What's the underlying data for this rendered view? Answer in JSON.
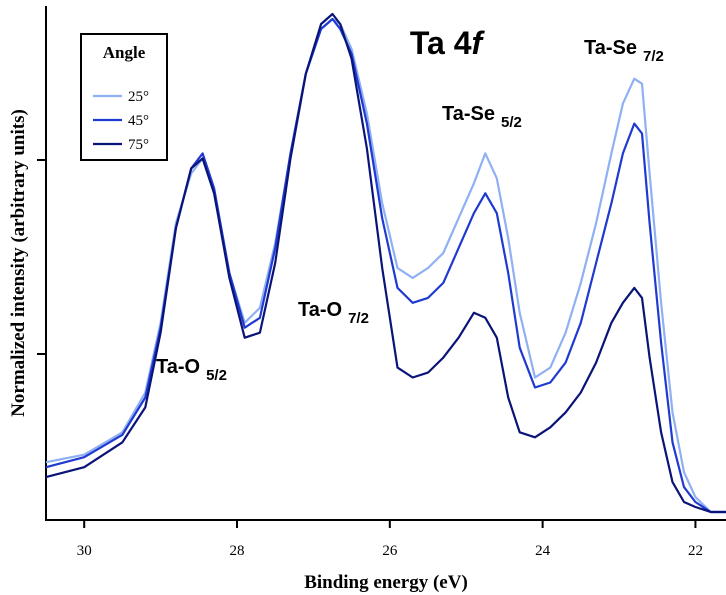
{
  "chart_data": {
    "type": "line",
    "title": "Ta 4",
    "title_italic": "f",
    "xlabel": "Binding energy (eV)",
    "ylabel": "Normalized intensity (arbitrary units)",
    "xlim": [
      30.5,
      21.6
    ],
    "ylim": [
      0,
      1.0
    ],
    "x_reversed": true,
    "x_ticks": [
      30,
      28,
      26,
      24,
      22
    ],
    "y_ticks_labeled": false,
    "legend": {
      "title": "Angle",
      "position": "top-left",
      "entries": [
        "25°",
        "45°",
        "75°"
      ]
    },
    "annotations": [
      {
        "main": "Ta-O",
        "sub": "5/2"
      },
      {
        "main": "Ta-O",
        "sub": "7/2"
      },
      {
        "main": "Ta-Se",
        "sub": "5/2"
      },
      {
        "main": "Ta-Se",
        "sub": "7/2"
      }
    ],
    "series": [
      {
        "name": "25°",
        "color": "#8fb0f2",
        "x": [
          30.5,
          30.0,
          29.5,
          29.2,
          29.0,
          28.8,
          28.6,
          28.45,
          28.3,
          28.1,
          27.9,
          27.7,
          27.5,
          27.3,
          27.1,
          26.9,
          26.75,
          26.65,
          26.5,
          26.3,
          26.1,
          25.9,
          25.7,
          25.5,
          25.3,
          25.1,
          24.9,
          24.75,
          24.6,
          24.45,
          24.3,
          24.1,
          23.9,
          23.7,
          23.5,
          23.3,
          23.1,
          22.95,
          22.8,
          22.7,
          22.6,
          22.45,
          22.3,
          22.15,
          22.0,
          21.8,
          21.6
        ],
        "y": [
          0.1,
          0.115,
          0.16,
          0.24,
          0.38,
          0.58,
          0.68,
          0.71,
          0.64,
          0.48,
          0.38,
          0.41,
          0.54,
          0.72,
          0.88,
          0.97,
          0.99,
          0.98,
          0.93,
          0.8,
          0.62,
          0.49,
          0.47,
          0.49,
          0.52,
          0.59,
          0.66,
          0.72,
          0.67,
          0.55,
          0.4,
          0.27,
          0.29,
          0.36,
          0.46,
          0.58,
          0.72,
          0.82,
          0.87,
          0.86,
          0.68,
          0.42,
          0.2,
          0.08,
          0.03,
          0.0,
          0.0
        ]
      },
      {
        "name": "45°",
        "color": "#1f3ad0",
        "x": [
          30.5,
          30.0,
          29.5,
          29.2,
          29.0,
          28.8,
          28.6,
          28.45,
          28.3,
          28.1,
          27.9,
          27.7,
          27.5,
          27.3,
          27.1,
          26.9,
          26.75,
          26.65,
          26.5,
          26.3,
          26.1,
          25.9,
          25.7,
          25.5,
          25.3,
          25.1,
          24.9,
          24.75,
          24.6,
          24.45,
          24.3,
          24.1,
          23.9,
          23.7,
          23.5,
          23.3,
          23.1,
          22.95,
          22.8,
          22.7,
          22.6,
          22.45,
          22.3,
          22.15,
          22.0,
          21.8,
          21.6
        ],
        "y": [
          0.09,
          0.11,
          0.155,
          0.23,
          0.37,
          0.57,
          0.69,
          0.72,
          0.65,
          0.48,
          0.37,
          0.39,
          0.53,
          0.72,
          0.88,
          0.97,
          0.99,
          0.97,
          0.92,
          0.78,
          0.59,
          0.45,
          0.42,
          0.43,
          0.46,
          0.53,
          0.6,
          0.64,
          0.6,
          0.48,
          0.33,
          0.25,
          0.26,
          0.3,
          0.38,
          0.5,
          0.62,
          0.72,
          0.78,
          0.76,
          0.58,
          0.34,
          0.14,
          0.05,
          0.02,
          0.0,
          0.0
        ]
      },
      {
        "name": "75°",
        "color": "#0a1478",
        "x": [
          30.5,
          30.0,
          29.5,
          29.2,
          29.0,
          28.8,
          28.6,
          28.45,
          28.3,
          28.1,
          27.9,
          27.7,
          27.5,
          27.3,
          27.1,
          26.9,
          26.75,
          26.65,
          26.5,
          26.3,
          26.1,
          25.9,
          25.7,
          25.5,
          25.3,
          25.1,
          24.9,
          24.75,
          24.6,
          24.45,
          24.3,
          24.1,
          23.9,
          23.7,
          23.5,
          23.3,
          23.1,
          22.95,
          22.8,
          22.7,
          22.6,
          22.45,
          22.3,
          22.15,
          22.0,
          21.8,
          21.6
        ],
        "y": [
          0.07,
          0.09,
          0.14,
          0.21,
          0.36,
          0.57,
          0.69,
          0.71,
          0.64,
          0.47,
          0.35,
          0.36,
          0.5,
          0.71,
          0.88,
          0.98,
          1.0,
          0.98,
          0.91,
          0.73,
          0.49,
          0.29,
          0.27,
          0.28,
          0.31,
          0.35,
          0.4,
          0.39,
          0.35,
          0.23,
          0.16,
          0.15,
          0.17,
          0.2,
          0.24,
          0.3,
          0.38,
          0.42,
          0.45,
          0.43,
          0.31,
          0.16,
          0.06,
          0.02,
          0.01,
          0.0,
          0.0
        ]
      }
    ]
  }
}
